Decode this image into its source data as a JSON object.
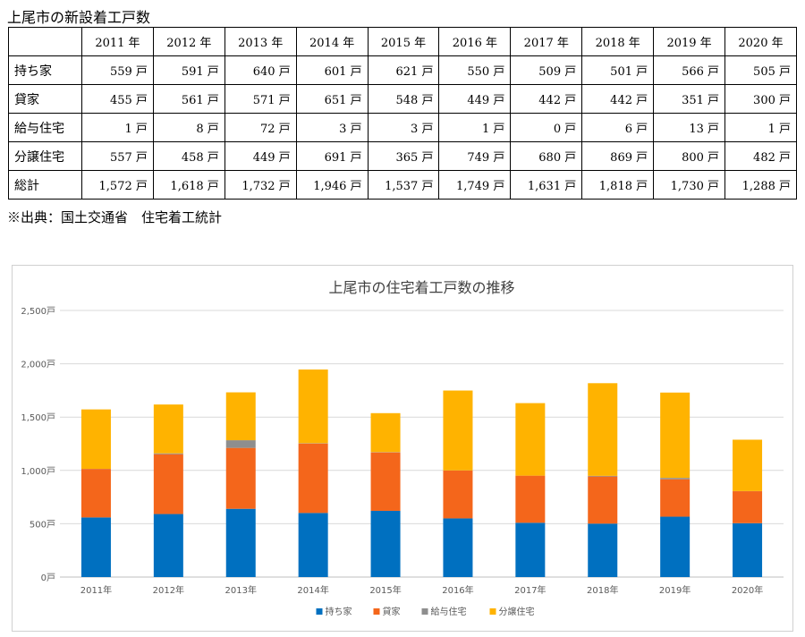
{
  "table": {
    "title": "上尾市の新設着工戸数",
    "years": [
      "2011 年",
      "2012 年",
      "2013 年",
      "2014 年",
      "2015 年",
      "2016 年",
      "2017 年",
      "2018 年",
      "2019 年",
      "2020 年"
    ],
    "rows": [
      {
        "label": "持ち家",
        "cells": [
          "559 戸",
          "591 戸",
          "640 戸",
          "601 戸",
          "621 戸",
          "550 戸",
          "509 戸",
          "501 戸",
          "566 戸",
          "505 戸"
        ]
      },
      {
        "label": "貸家",
        "cells": [
          "455 戸",
          "561 戸",
          "571 戸",
          "651 戸",
          "548 戸",
          "449 戸",
          "442 戸",
          "442 戸",
          "351 戸",
          "300 戸"
        ]
      },
      {
        "label": "給与住宅",
        "cells": [
          "1 戸",
          "8 戸",
          "72 戸",
          "3 戸",
          "3 戸",
          "1 戸",
          "0 戸",
          "6 戸",
          "13 戸",
          "1 戸"
        ]
      },
      {
        "label": "分譲住宅",
        "cells": [
          "557 戸",
          "458 戸",
          "449 戸",
          "691 戸",
          "365 戸",
          "749 戸",
          "680 戸",
          "869 戸",
          "800 戸",
          "482 戸"
        ]
      },
      {
        "label": "総計",
        "cells": [
          "1,572 戸",
          "1,618 戸",
          "1,732 戸",
          "1,946 戸",
          "1,537 戸",
          "1,749 戸",
          "1,631 戸",
          "1,818 戸",
          "1,730 戸",
          "1,288 戸"
        ]
      }
    ]
  },
  "source_note": "※出典：国土交通省　住宅着工統計",
  "chart_data": {
    "type": "bar",
    "stacked": true,
    "title": "上尾市の住宅着工戸数の推移",
    "categories": [
      "2011年",
      "2012年",
      "2013年",
      "2014年",
      "2015年",
      "2016年",
      "2017年",
      "2018年",
      "2019年",
      "2020年"
    ],
    "series": [
      {
        "name": "持ち家",
        "color": "#0070C0",
        "values": [
          559,
          591,
          640,
          601,
          621,
          550,
          509,
          501,
          566,
          505
        ]
      },
      {
        "name": "貸家",
        "color": "#F4661B",
        "values": [
          455,
          561,
          571,
          651,
          548,
          449,
          442,
          442,
          351,
          300
        ]
      },
      {
        "name": "給与住宅",
        "color": "#8E8E8E",
        "values": [
          1,
          8,
          72,
          3,
          3,
          1,
          0,
          6,
          13,
          1
        ]
      },
      {
        "name": "分譲住宅",
        "color": "#FFB300",
        "values": [
          557,
          458,
          449,
          691,
          365,
          749,
          680,
          869,
          800,
          482
        ]
      }
    ],
    "ylim": [
      0,
      2500
    ],
    "yticks": [
      0,
      500,
      1000,
      1500,
      2000,
      2500
    ],
    "ytick_labels": [
      "0戸",
      "500戸",
      "1,000戸",
      "1,500戸",
      "2,000戸",
      "2,500戸"
    ],
    "grid": true,
    "legend_position": "bottom"
  }
}
